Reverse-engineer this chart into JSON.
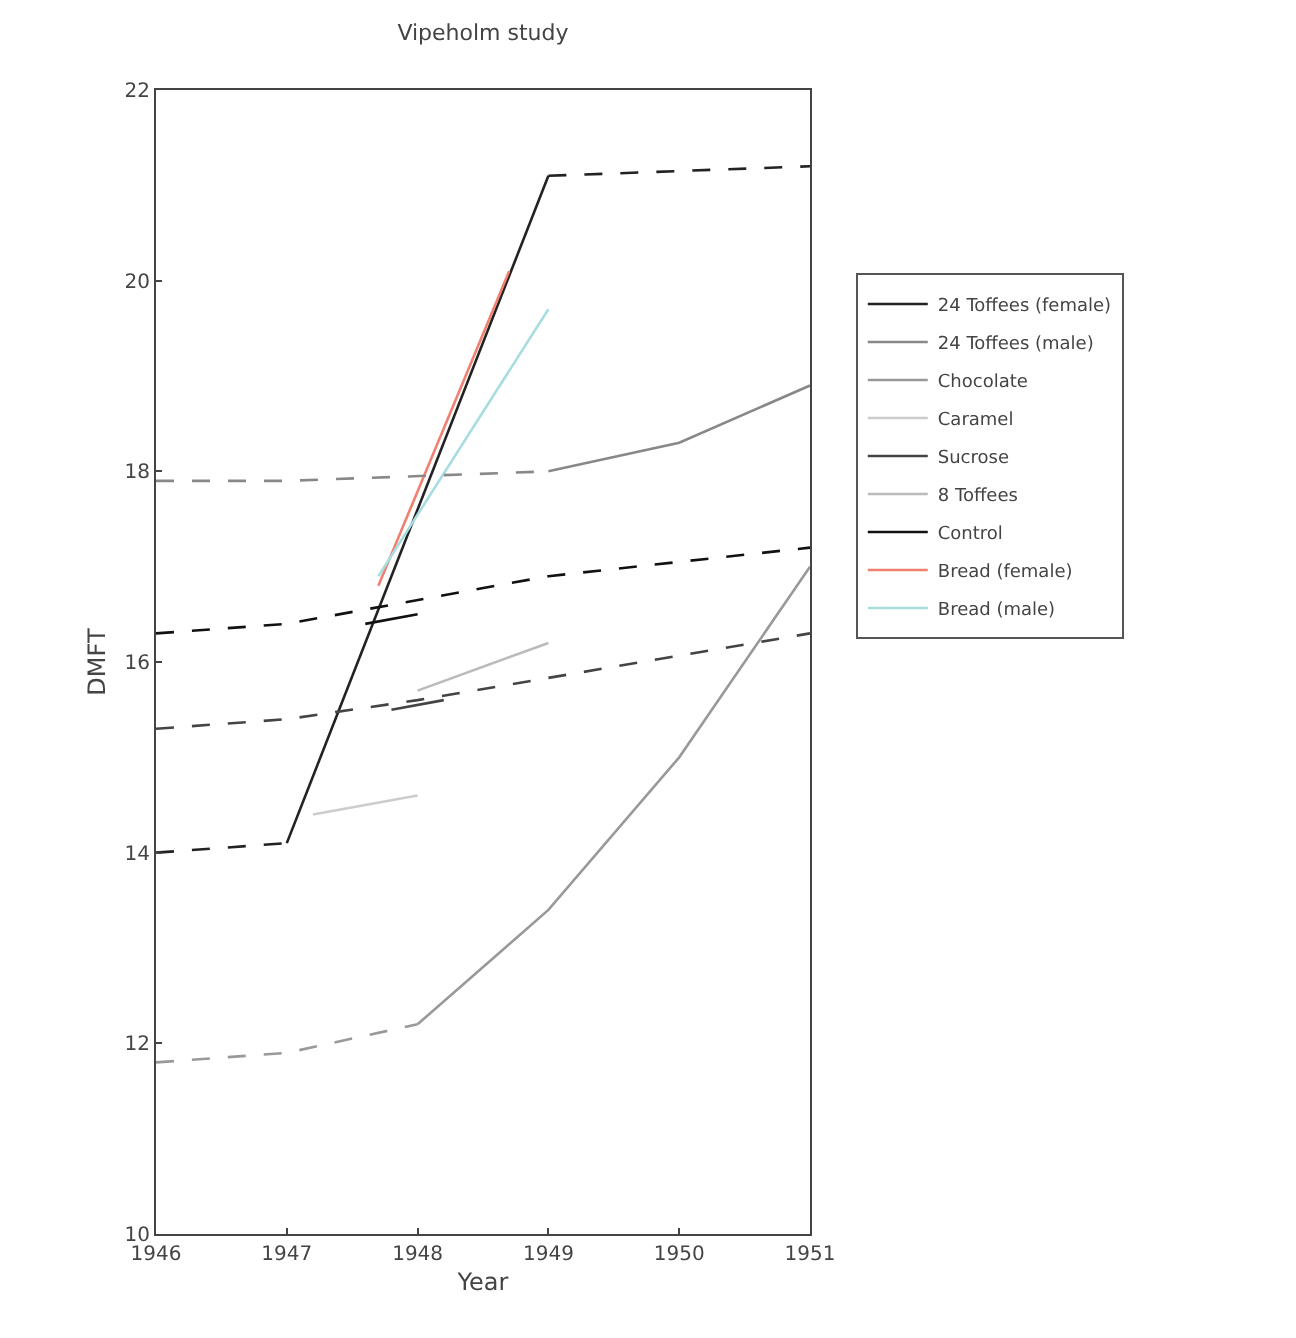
{
  "chart_data": {
    "type": "line",
    "title": "Vipeholm study",
    "xlabel": "Year",
    "ylabel": "DMFT",
    "xlim": [
      1946,
      1951
    ],
    "xticks": [
      1946,
      1947,
      1948,
      1949,
      1950,
      1951
    ],
    "ylim": [
      10,
      22
    ],
    "yticks": [
      10,
      12,
      14,
      16,
      18,
      20,
      22
    ],
    "legend": "right",
    "marker": "none",
    "series": [
      {
        "name": "24 Toffees (female)",
        "color": "#222222",
        "line_style": "solid",
        "x": [
          1947,
          1949
        ],
        "values": [
          14.1,
          21.1
        ]
      },
      {
        "name": "24 Toffees (male)",
        "color": "#888888",
        "line_style": "solid",
        "x": [
          1949,
          1950,
          1951
        ],
        "values": [
          18.0,
          18.3,
          18.9
        ]
      },
      {
        "name": "Chocolate",
        "color": "#999999",
        "line_style": "solid",
        "x": [
          1948,
          1949,
          1950,
          1951
        ],
        "values": [
          12.2,
          13.4,
          15.0,
          17.0
        ]
      },
      {
        "name": "Caramel",
        "color": "#cccccc",
        "line_style": "solid",
        "x": [
          1947.2,
          1948
        ],
        "values": [
          14.4,
          14.6
        ]
      },
      {
        "name": "Sucrose",
        "color": "#444444",
        "line_style": "solid",
        "x": [
          1947.8,
          1948.2
        ],
        "values": [
          15.5,
          15.6
        ]
      },
      {
        "name": "8 Toffees",
        "color": "#bbbbbb",
        "line_style": "solid",
        "x": [
          1948,
          1949
        ],
        "values": [
          15.7,
          16.2
        ]
      },
      {
        "name": "Control",
        "color": "#111111",
        "line_style": "solid",
        "x": [
          1947.6,
          1948
        ],
        "values": [
          16.4,
          16.5
        ]
      },
      {
        "name": "Bread (female)",
        "color": "#f08070",
        "line_style": "solid",
        "x": [
          1947.7,
          1948.7
        ],
        "values": [
          16.8,
          20.1
        ]
      },
      {
        "name": "Bread (male)",
        "color": "#a8dde0",
        "line_style": "solid",
        "x": [
          1947.7,
          1949
        ],
        "values": [
          16.9,
          19.7
        ]
      },
      {
        "color": "#222222",
        "line_style": "dashed",
        "x": [
          1946,
          1947
        ],
        "values": [
          14.0,
          14.1
        ]
      },
      {
        "color": "#222222",
        "line_style": "dashed",
        "x": [
          1949,
          1951
        ],
        "values": [
          21.1,
          21.2
        ]
      },
      {
        "color": "#888888",
        "line_style": "dashed",
        "x": [
          1946,
          1947,
          1949
        ],
        "values": [
          17.9,
          17.9,
          18.0
        ]
      },
      {
        "color": "#999999",
        "line_style": "dashed",
        "x": [
          1946,
          1947,
          1948
        ],
        "values": [
          11.8,
          11.9,
          12.2
        ]
      },
      {
        "color": "#444444",
        "line_style": "dashed",
        "x": [
          1946,
          1947,
          1948,
          1951
        ],
        "values": [
          15.3,
          15.4,
          15.6,
          16.3
        ]
      },
      {
        "color": "#111111",
        "line_style": "dashed",
        "x": [
          1946,
          1947,
          1949,
          1951
        ],
        "values": [
          16.3,
          16.4,
          16.9,
          17.2
        ]
      }
    ]
  }
}
